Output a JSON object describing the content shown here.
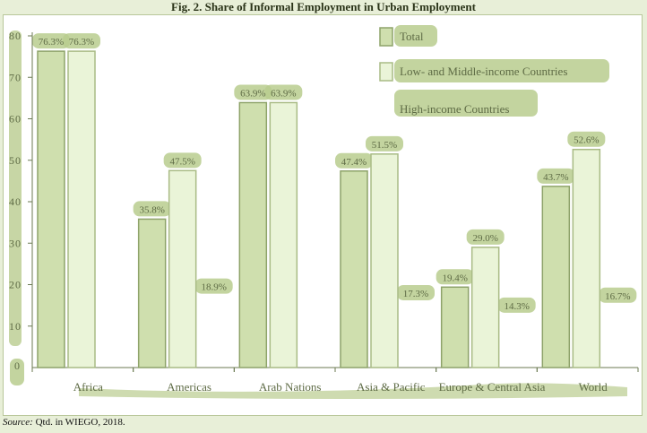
{
  "figure": {
    "title": "Fig. 2.  Share of Informal Employment in Urban Employment"
  },
  "source": {
    "label": "Source:",
    "text": " Qtd. in WIEGO, 2018."
  },
  "colors": {
    "total_fill": "#cfdfae",
    "total_stroke": "#8ea36a",
    "lmic_fill": "#eaf4d8",
    "lmic_stroke": "#a9bb85",
    "highlight": "#b9cc8e",
    "axis": "#6b7a52",
    "text": "#5e6b45"
  },
  "chart_data": {
    "type": "bar",
    "title": "Fig. 2.  Share of Informal Employment in Urban Employment",
    "categories": [
      "Africa",
      "Americas",
      "Arab Nations",
      "Asia & Pacific",
      "Europe & Central Asia",
      "World"
    ],
    "series": [
      {
        "name": "Total",
        "values": [
          76.3,
          35.8,
          63.9,
          47.4,
          19.4,
          43.7
        ],
        "labels": [
          "76.3%",
          "35.8%",
          "63.9%",
          "47.4%",
          "19.4%",
          "43.7%"
        ]
      },
      {
        "name": "Low- and Middle-income Countries",
        "values": [
          76.3,
          47.5,
          63.9,
          51.5,
          29.0,
          52.6
        ],
        "labels": [
          "76.3%",
          "47.5%",
          "63.9%",
          "51.5%",
          "29.0%",
          "52.6%"
        ]
      },
      {
        "name": "High-income Countries",
        "values": [
          null,
          18.9,
          null,
          17.3,
          14.3,
          16.7
        ],
        "labels": [
          "",
          "18.9%",
          "",
          "17.3%",
          "14.3%",
          "16.7%"
        ]
      }
    ],
    "ylim": [
      0,
      80
    ],
    "yticks": [
      "0",
      "10",
      "20",
      "30",
      "40",
      "50",
      "60",
      "70",
      "80"
    ],
    "xlabel": "",
    "ylabel": "",
    "grid": false,
    "legend": "top-right"
  }
}
